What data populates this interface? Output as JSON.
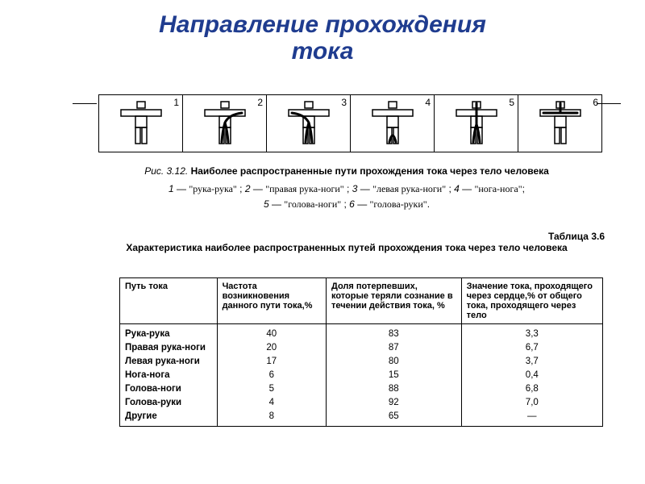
{
  "title_line1": "Направление прохождения",
  "title_line2": "тока",
  "title_color": "#1f3c8f",
  "title_fontsize": 30,
  "figure": {
    "ref": "Рис. 3.12.",
    "caption": "Наиболее распространенные пути прохождения тока через тело человека",
    "cells": [
      {
        "num": "1",
        "path": "none"
      },
      {
        "num": "2",
        "path": "rightarm-legs"
      },
      {
        "num": "3",
        "path": "leftarm-legs"
      },
      {
        "num": "4",
        "path": "leg-leg"
      },
      {
        "num": "5",
        "path": "head-legs"
      },
      {
        "num": "6",
        "path": "head-arms"
      }
    ],
    "legend_items": [
      {
        "n": "1",
        "text": "\"рука-рука\""
      },
      {
        "n": "2",
        "text": "\"правая рука-ноги\""
      },
      {
        "n": "3",
        "text": "\"левая рука-ноги\""
      },
      {
        "n": "4",
        "text": "\"нога-нога\""
      },
      {
        "n": "5",
        "text": "\"голова-ноги\""
      },
      {
        "n": "6",
        "text": "\"голова-руки\""
      }
    ]
  },
  "table": {
    "label": "Таблица 3.6",
    "title": "Характеристика наиболее распространенных путей прохождения тока через тело человека",
    "columns": [
      "Путь тока",
      "Частота возникновения данного пути тока,%",
      "Доля потерпевших, которые теряли сознание в течении действия тока, %",
      "Значение тока, проходящего через сердце,% от общего тока, проходящего через тело"
    ],
    "rows": [
      [
        "Рука-рука",
        "40",
        "83",
        "3,3"
      ],
      [
        "Правая рука-ноги",
        "20",
        "87",
        "6,7"
      ],
      [
        "Левая рука-ноги",
        "17",
        "80",
        "3,7"
      ],
      [
        "Нога-нога",
        "6",
        "15",
        "0,4"
      ],
      [
        "Голова-ноги",
        "5",
        "88",
        "6,8"
      ],
      [
        "Голова-руки",
        "4",
        "92",
        "7,0"
      ],
      [
        "Другие",
        "8",
        "65",
        "—"
      ]
    ]
  },
  "colors": {
    "background": "#ffffff",
    "text": "#000000",
    "border": "#000000"
  }
}
